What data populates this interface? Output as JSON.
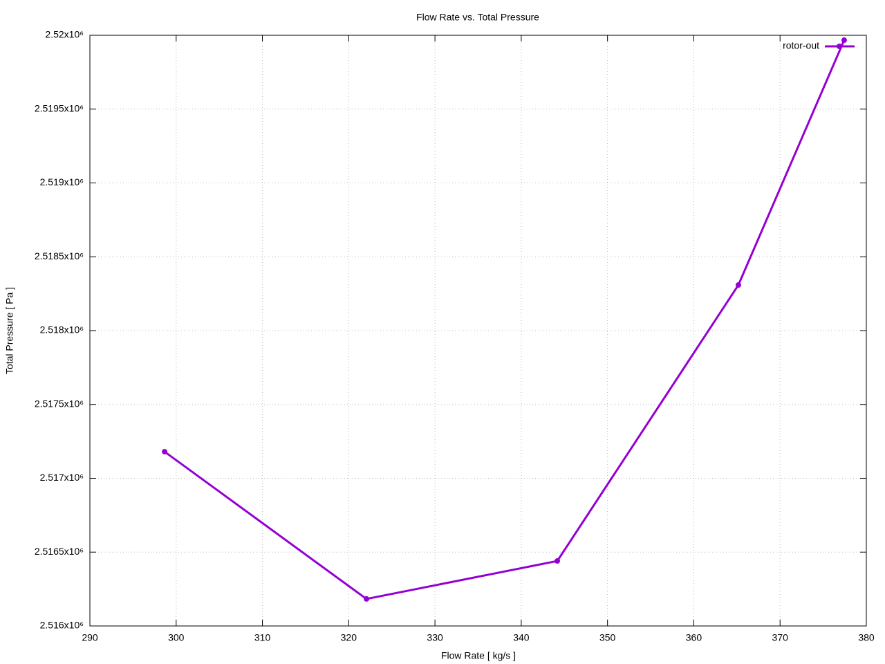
{
  "chart_data": {
    "type": "line",
    "title": "Flow Rate vs. Total Pressure",
    "x_label": "Flow Rate [ kg/s ]",
    "y_label": "Total Pressure [ Pa ]",
    "x": [
      298.66,
      322.06,
      344.18,
      365.17,
      377.43
    ],
    "series": [
      {
        "name": "rotor-out",
        "color": "#9400d3",
        "values": [
          2517180,
          2516183,
          2516440,
          2518309,
          2519967
        ]
      }
    ],
    "xlim": [
      290,
      380
    ],
    "xticks": [
      290,
      300,
      310,
      320,
      330,
      340,
      350,
      360,
      370,
      380
    ],
    "ylim": [
      2516000,
      2520000
    ],
    "yticks": [
      {
        "value": 2516000,
        "label": "2.516x10⁶"
      },
      {
        "value": 2516500,
        "label": "2.5165x10⁶"
      },
      {
        "value": 2517000,
        "label": "2.517x10⁶"
      },
      {
        "value": 2517500,
        "label": "2.5175x10⁶"
      },
      {
        "value": 2518000,
        "label": "2.518x10⁶"
      },
      {
        "value": 2518500,
        "label": "2.5185x10⁶"
      },
      {
        "value": 2519000,
        "label": "2.519x10⁶"
      },
      {
        "value": 2519500,
        "label": "2.5195x10⁶"
      },
      {
        "value": 2520000,
        "label": "2.52x10⁶"
      }
    ],
    "grid": true,
    "legend": "top-right"
  }
}
